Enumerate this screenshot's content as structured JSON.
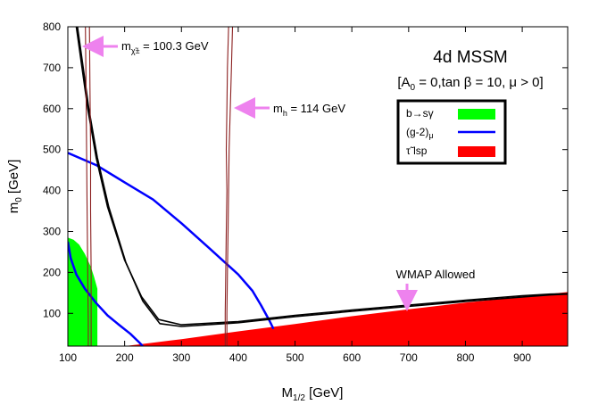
{
  "chart_data": {
    "type": "line",
    "title": "4d MSSM",
    "subtitle_parts": {
      "a0_sym": "A",
      "a0_sub": "0",
      "a0_rest": " = 0,",
      "tanb": "tan β = 10, μ > 0"
    },
    "xlabel": {
      "main": "M",
      "sub": "1/2",
      "unit": " [GeV]"
    },
    "ylabel": {
      "main": "m",
      "sub": "0",
      "unit": " [GeV]"
    },
    "xlim": [
      100,
      980
    ],
    "ylim": [
      20,
      800
    ],
    "x_ticks": [
      100,
      200,
      300,
      400,
      500,
      600,
      700,
      800,
      900
    ],
    "y_ticks": [
      100,
      200,
      300,
      400,
      500,
      600,
      700,
      800
    ],
    "legend": {
      "placement": "top-right",
      "entries": [
        {
          "label_main": "b→sγ",
          "label_sub": "",
          "color": "#00ff00",
          "kind": "patch"
        },
        {
          "label_main": "(g-2)",
          "label_sub": "μ",
          "color": "#0000ff",
          "kind": "line"
        },
        {
          "label_main": "τ̃ lsp",
          "label_sub": "",
          "color": "#ff0000",
          "kind": "patch"
        }
      ]
    },
    "annotations": {
      "chargino": {
        "main": "m",
        "sub": "χ̃±",
        "rest": " = 100.3 GeV",
        "arrow_to": [
          138,
          790
        ]
      },
      "higgs": {
        "main": "m",
        "sub": "h",
        "rest": " = 114 GeV",
        "arrow_to": [
          380,
          630
        ]
      },
      "wmap": {
        "text": "WMAP Allowed",
        "arrow_to": [
          700,
          115
        ]
      }
    },
    "colors": {
      "bsg": "#00ff00",
      "stau": "#ff0000",
      "g2": "#0000ff",
      "higgs": "#8b2020",
      "chargino": "#8b2020",
      "wmap": "#000000",
      "arrow": "#ee82ee"
    },
    "series": [
      {
        "id": "bsg-region",
        "kind": "filled-region",
        "x": [
          100,
          100,
          110,
          120,
          130,
          140,
          146,
          152,
          152
        ],
        "y": [
          20,
          285,
          280,
          268,
          245,
          215,
          190,
          160,
          20
        ]
      },
      {
        "id": "stau-region",
        "kind": "filled-region",
        "x": [
          100,
          130,
          160,
          200,
          230,
          300,
          400,
          500,
          600,
          700,
          800,
          900,
          980,
          980
        ],
        "y": [
          20,
          20,
          20,
          20,
          25,
          37,
          56,
          74,
          93,
          110,
          126,
          140,
          152,
          20
        ]
      },
      {
        "id": "g2-upper",
        "kind": "line",
        "x": [
          100,
          150,
          200,
          250,
          300,
          350,
          400,
          425,
          440,
          455,
          462
        ],
        "y": [
          492,
          462,
          420,
          378,
          320,
          258,
          195,
          155,
          120,
          82,
          62
        ]
      },
      {
        "id": "g2-lower",
        "kind": "line",
        "x": [
          100,
          105,
          115,
          130,
          150,
          170,
          190,
          210,
          225,
          232
        ],
        "y": [
          275,
          235,
          195,
          160,
          125,
          95,
          72,
          50,
          30,
          20
        ]
      },
      {
        "id": "wmap-strip-upper",
        "kind": "line",
        "x": [
          115,
          125,
          135,
          150,
          170,
          200,
          230,
          260,
          300,
          400,
          500,
          600,
          700,
          800,
          900,
          950,
          980
        ],
        "y": [
          800,
          700,
          600,
          480,
          360,
          230,
          140,
          85,
          72,
          80,
          95,
          108,
          120,
          132,
          143,
          147,
          148
        ]
      },
      {
        "id": "wmap-strip-lower",
        "kind": "line",
        "x": [
          117,
          127,
          137,
          152,
          172,
          202,
          232,
          262,
          300,
          400,
          500,
          600,
          700,
          800,
          900,
          950,
          980
        ],
        "y": [
          800,
          700,
          600,
          480,
          360,
          225,
          130,
          75,
          68,
          77,
          92,
          105,
          117,
          129,
          140,
          145,
          147
        ]
      },
      {
        "id": "higgs-left",
        "kind": "line",
        "x": [
          383,
          381,
          380,
          379,
          380,
          379,
          378,
          377,
          377
        ],
        "y": [
          800,
          700,
          600,
          500,
          400,
          300,
          200,
          100,
          20
        ]
      },
      {
        "id": "higgs-right",
        "kind": "line",
        "x": [
          390,
          388,
          386,
          384,
          383,
          382,
          381,
          380,
          380
        ],
        "y": [
          800,
          700,
          600,
          500,
          400,
          300,
          200,
          100,
          20
        ]
      },
      {
        "id": "chargino-left",
        "kind": "line",
        "x": [
          131,
          132,
          133,
          134,
          135,
          136,
          136
        ],
        "y": [
          800,
          650,
          500,
          350,
          200,
          80,
          20
        ]
      },
      {
        "id": "chargino-right",
        "kind": "line",
        "x": [
          138,
          139,
          140,
          140,
          141,
          141,
          141
        ],
        "y": [
          800,
          650,
          500,
          350,
          200,
          80,
          20
        ]
      }
    ]
  }
}
